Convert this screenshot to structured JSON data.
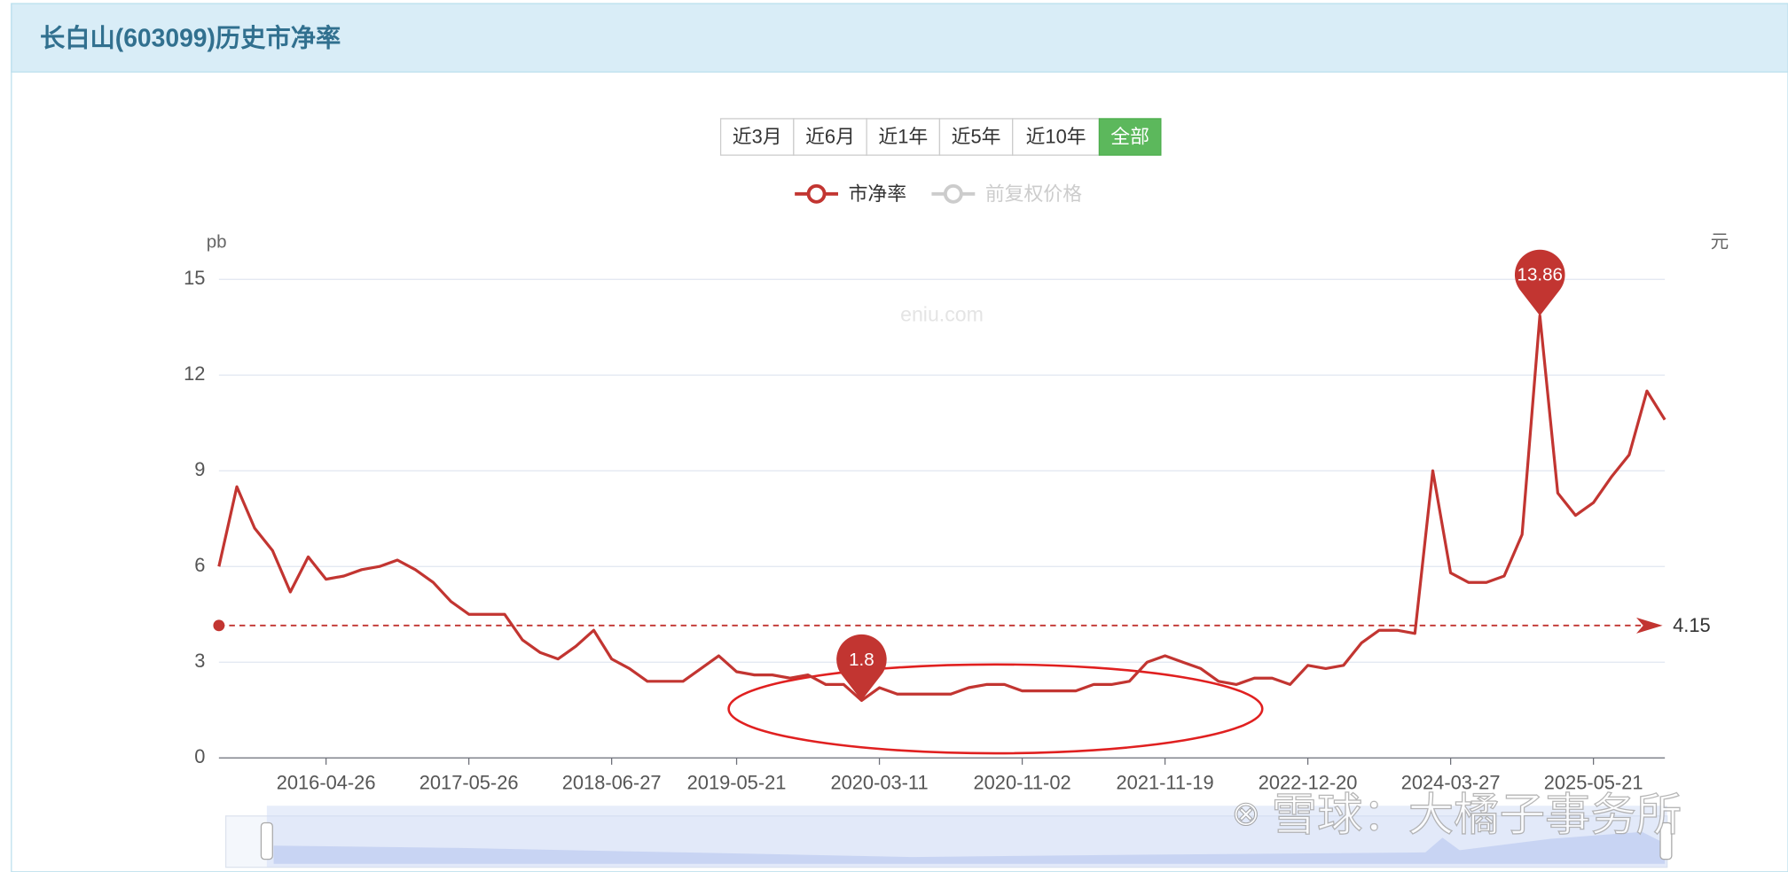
{
  "header": {
    "title": "长白山(603099)历史市净率"
  },
  "range_buttons": [
    "近3月",
    "近6月",
    "近1年",
    "近5年",
    "近10年",
    "全部"
  ],
  "active_button": 5,
  "watermark": "eniu.com",
  "overlay_watermark": "雪球：大橘子事务所",
  "chart_data": {
    "type": "line",
    "y_axis_name": "pb",
    "y2_axis_name": "元",
    "categories": [
      null,
      null,
      null,
      null,
      null,
      null,
      "2016-04-26",
      null,
      null,
      null,
      null,
      null,
      null,
      null,
      "2017-05-26",
      null,
      null,
      null,
      null,
      null,
      null,
      null,
      "2018-06-27",
      null,
      null,
      null,
      null,
      null,
      null,
      "2019-05-21",
      null,
      null,
      null,
      null,
      null,
      null,
      null,
      "2020-03-11",
      null,
      null,
      null,
      null,
      null,
      null,
      null,
      "2020-11-02",
      null,
      null,
      null,
      null,
      null,
      null,
      null,
      "2021-11-19",
      null,
      null,
      null,
      null,
      null,
      null,
      null,
      "2022-12-20",
      null,
      null,
      null,
      null,
      null,
      null,
      null,
      "2024-03-27",
      null,
      null,
      null,
      null,
      null,
      null,
      null,
      "2025-05-21",
      null,
      null,
      null,
      null
    ],
    "series": [
      {
        "name": "市净率",
        "color": "#c23531",
        "values": [
          6.0,
          8.5,
          7.2,
          6.5,
          5.2,
          6.3,
          5.6,
          5.7,
          5.9,
          6.0,
          6.2,
          5.9,
          5.5,
          4.9,
          4.5,
          4.5,
          4.5,
          3.7,
          3.3,
          3.1,
          3.5,
          4.0,
          3.1,
          2.8,
          2.4,
          2.4,
          2.4,
          2.8,
          3.2,
          2.7,
          2.6,
          2.6,
          2.5,
          2.6,
          2.3,
          2.3,
          1.8,
          2.2,
          2.0,
          2.0,
          2.0,
          2.0,
          2.2,
          2.3,
          2.3,
          2.1,
          2.1,
          2.1,
          2.1,
          2.3,
          2.3,
          2.4,
          3.0,
          3.2,
          3.0,
          2.8,
          2.4,
          2.3,
          2.5,
          2.5,
          2.3,
          2.9,
          2.8,
          2.9,
          3.6,
          4.0,
          4.0,
          3.9,
          9.0,
          5.8,
          5.5,
          5.5,
          5.7,
          7.0,
          13.86,
          8.3,
          7.6,
          8.0,
          8.8,
          9.5,
          11.5,
          10.6
        ]
      }
    ],
    "inactive_legend": {
      "name": "前复权价格",
      "color": "#ccc"
    },
    "max_index": 74,
    "min_index": 36,
    "average_line": 4.15,
    "ylim": [
      0,
      15
    ],
    "yticks": [
      0,
      3,
      6,
      9,
      12,
      15
    ],
    "grid": true
  }
}
